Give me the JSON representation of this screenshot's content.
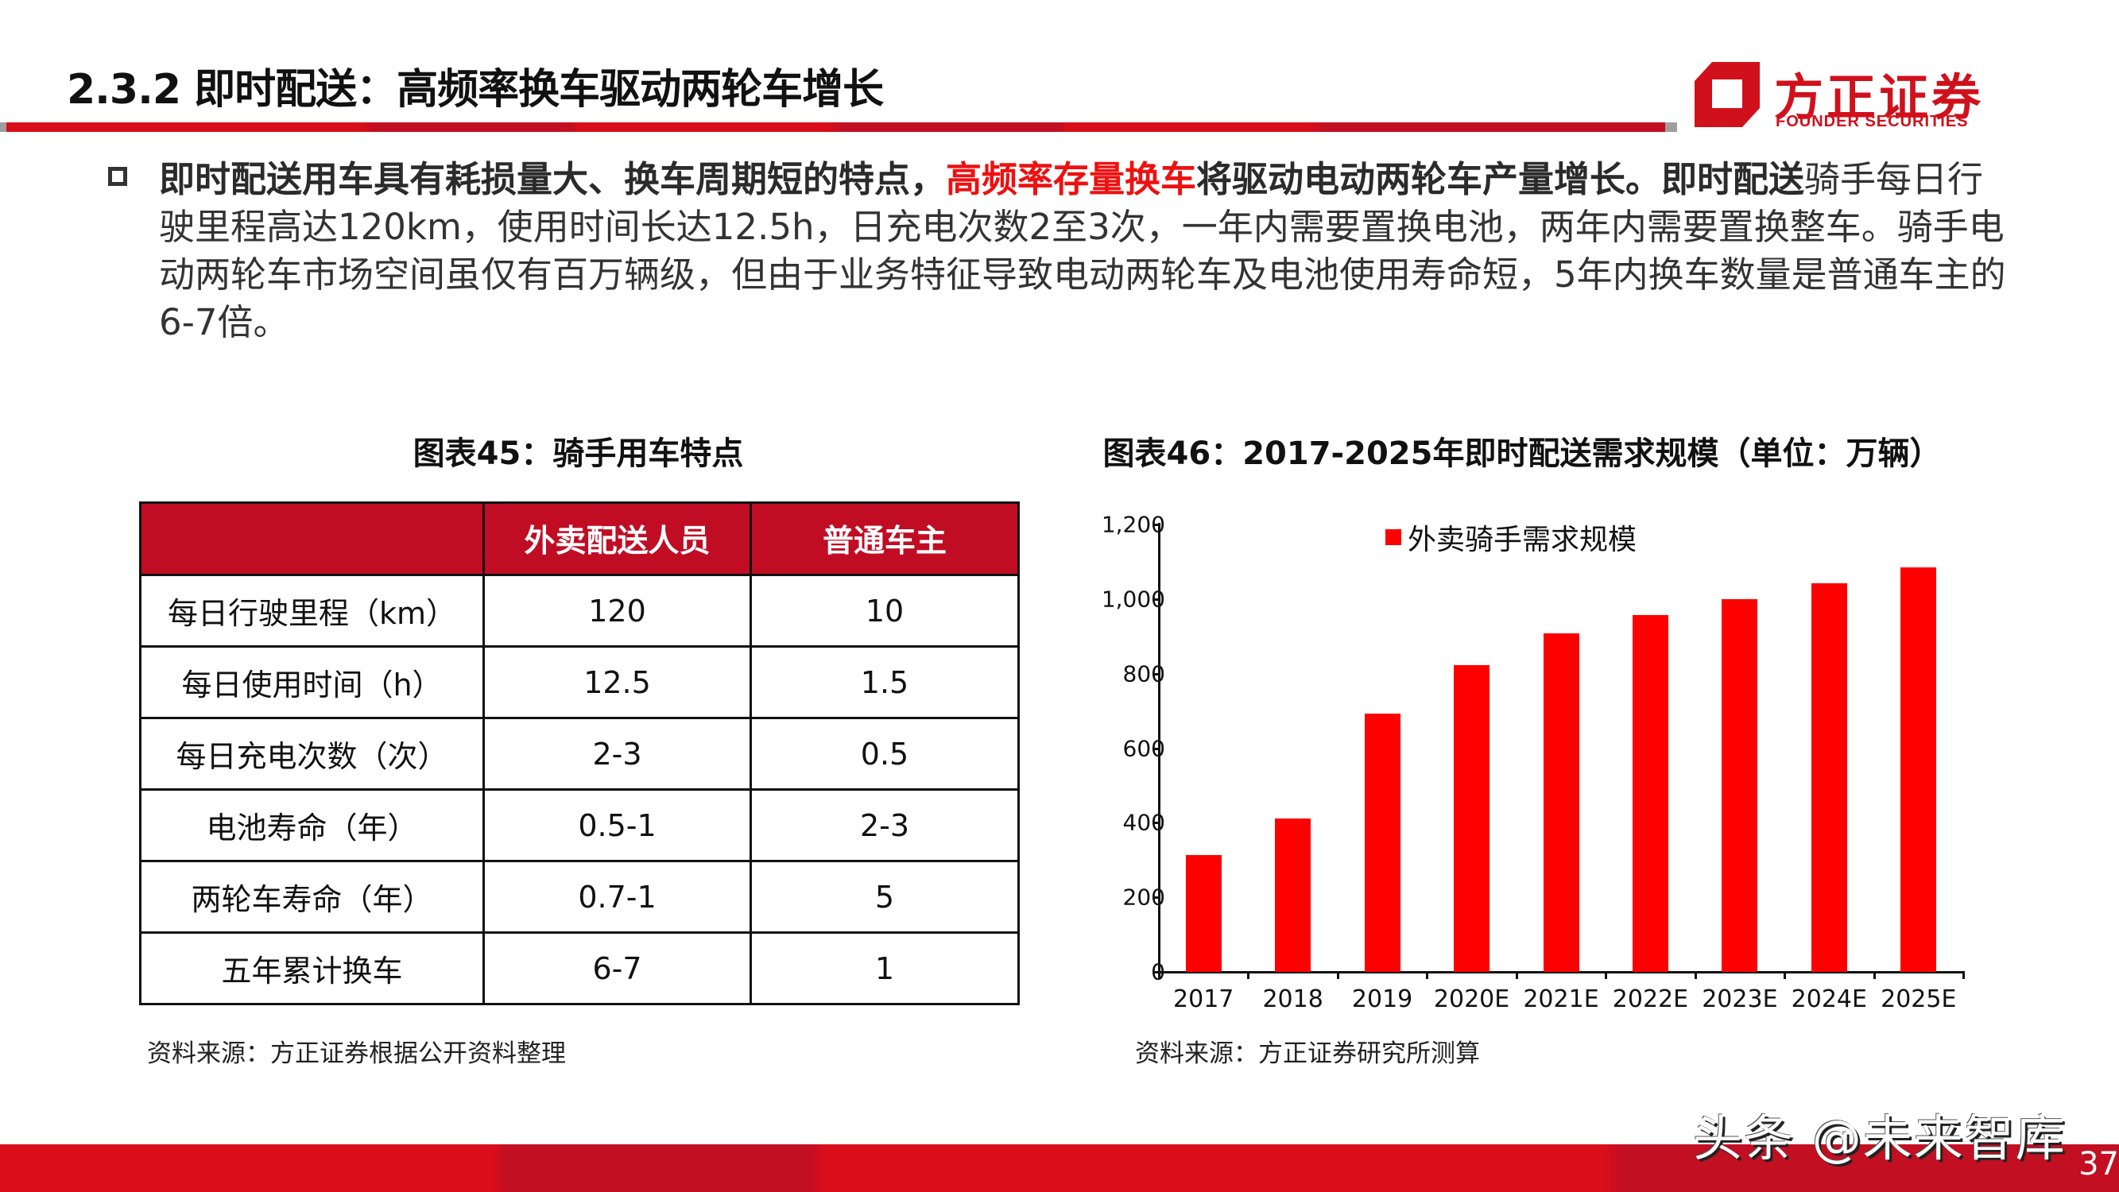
{
  "header": {
    "title": "2.3.2 即时配送：高频率换车驱动两轮车增长",
    "logo": {
      "cn": "方正证券",
      "en": "FOUNDER SECURITIES",
      "brand_color": "#d0111b"
    }
  },
  "bullet": {
    "icon": "hollow-square-bullet-icon",
    "bold_lead": "即时配送用车具有耗损量大、换车周期短的特点，",
    "highlight": "高频率存量换车",
    "bold_tail": "将驱动电动两轮车产量增长。即时配送",
    "body": "骑手每日行驶里程高达120km，使用时间长达12.5h，日充电次数2至3次，一年内需要置换电池，两年内需要置换整车。骑手电动两轮车市场空间虽仅有百万辆级，但由于业务特征导致电动两轮车及电池使用寿命短，",
    "body_tail": "5年内换车数量是普通车主的6-7倍。",
    "highlight_color": "#ee1111"
  },
  "table_panel": {
    "title": "图表45：骑手用车特点",
    "header_color": "#c00d24",
    "columns": [
      "",
      "外卖配送人员",
      "普通车主"
    ],
    "rows": [
      [
        "每日行驶里程（km）",
        "120",
        "10"
      ],
      [
        "每日使用时间（h）",
        "12.5",
        "1.5"
      ],
      [
        "每日充电次数（次）",
        "2-3",
        "0.5"
      ],
      [
        "电池寿命（年）",
        "0.5-1",
        "2-3"
      ],
      [
        "两轮车寿命（年）",
        "0.7-1",
        "5"
      ],
      [
        "五年累计换车",
        "6-7",
        "1"
      ]
    ],
    "source": "资料来源：方正证券根据公开资料整理"
  },
  "chart_panel": {
    "title": "图表46：2017-2025年即时配送需求规模（单位：万辆）",
    "source": "资料来源：方正证券研究所测算",
    "y_tick_labels": [
      "1,200",
      "1,000",
      "800",
      "600",
      "400",
      "200",
      "0"
    ]
  },
  "chart_data": {
    "type": "bar",
    "title": "图表46：2017-2025年即时配送需求规模（单位：万辆）",
    "categories": [
      "2017",
      "2018",
      "2019",
      "2020E",
      "2021E",
      "2022E",
      "2023E",
      "2024E",
      "2025E"
    ],
    "series": [
      {
        "name": "外卖骑手需求规模",
        "color": "#ff0000",
        "values": [
          313,
          412,
          693,
          822,
          909,
          958,
          1000,
          1042,
          1084
        ]
      }
    ],
    "xlabel": "",
    "ylabel": "",
    "ylim": [
      0,
      1200
    ],
    "yticks": [
      0,
      200,
      400,
      600,
      800,
      1000,
      1200
    ],
    "grid": false,
    "legend_position": "top-center"
  },
  "footer": {
    "watermark": "头条 @未来智库",
    "page_number": "37"
  }
}
